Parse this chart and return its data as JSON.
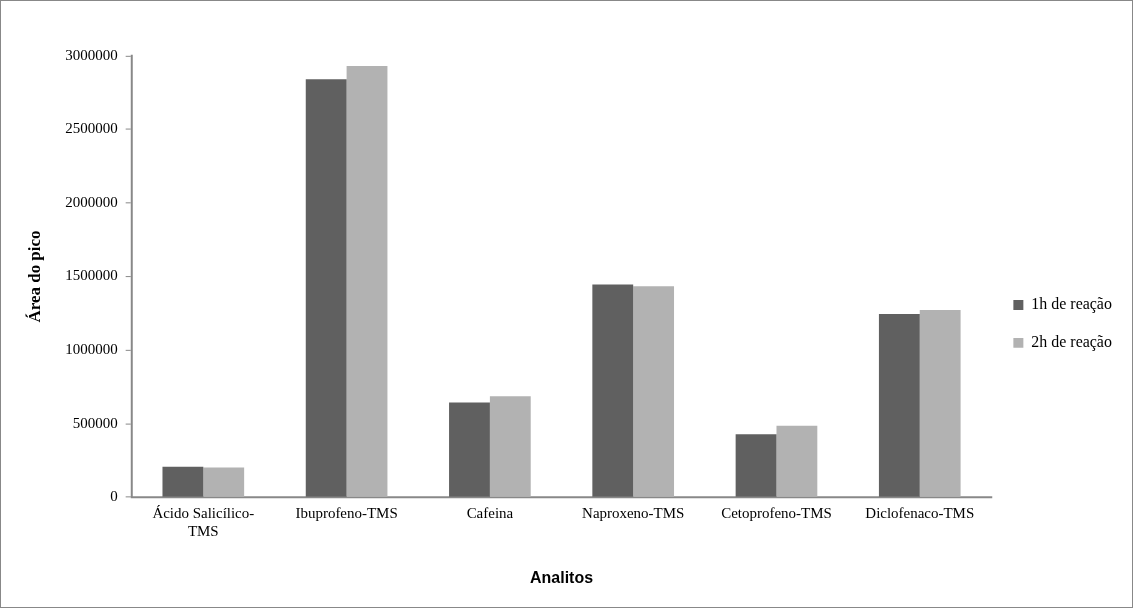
{
  "chart_data": {
    "type": "bar",
    "xlabel": "Analitos",
    "ylabel": "Área do pico",
    "categories": [
      "Ácido Salicílico-TMS",
      "Ibuprofeno-TMS",
      "Cafeina",
      "Naproxeno-TMS",
      "Cetoprofeno-TMS",
      "Diclofenaco-TMS"
    ],
    "series": [
      {
        "name": "1h de reação",
        "color": "#606060",
        "values": [
          207000,
          2840000,
          644000,
          1446000,
          428000,
          1245000
        ]
      },
      {
        "name": "2h de reação",
        "color": "#b2b2b2",
        "values": [
          202000,
          2930000,
          686000,
          1433000,
          486000,
          1272000
        ]
      }
    ],
    "ylim": [
      0,
      3000000
    ],
    "yticks": [
      0,
      500000,
      1000000,
      1500000,
      2000000,
      2500000,
      3000000
    ],
    "grid": false,
    "legend": "right"
  }
}
